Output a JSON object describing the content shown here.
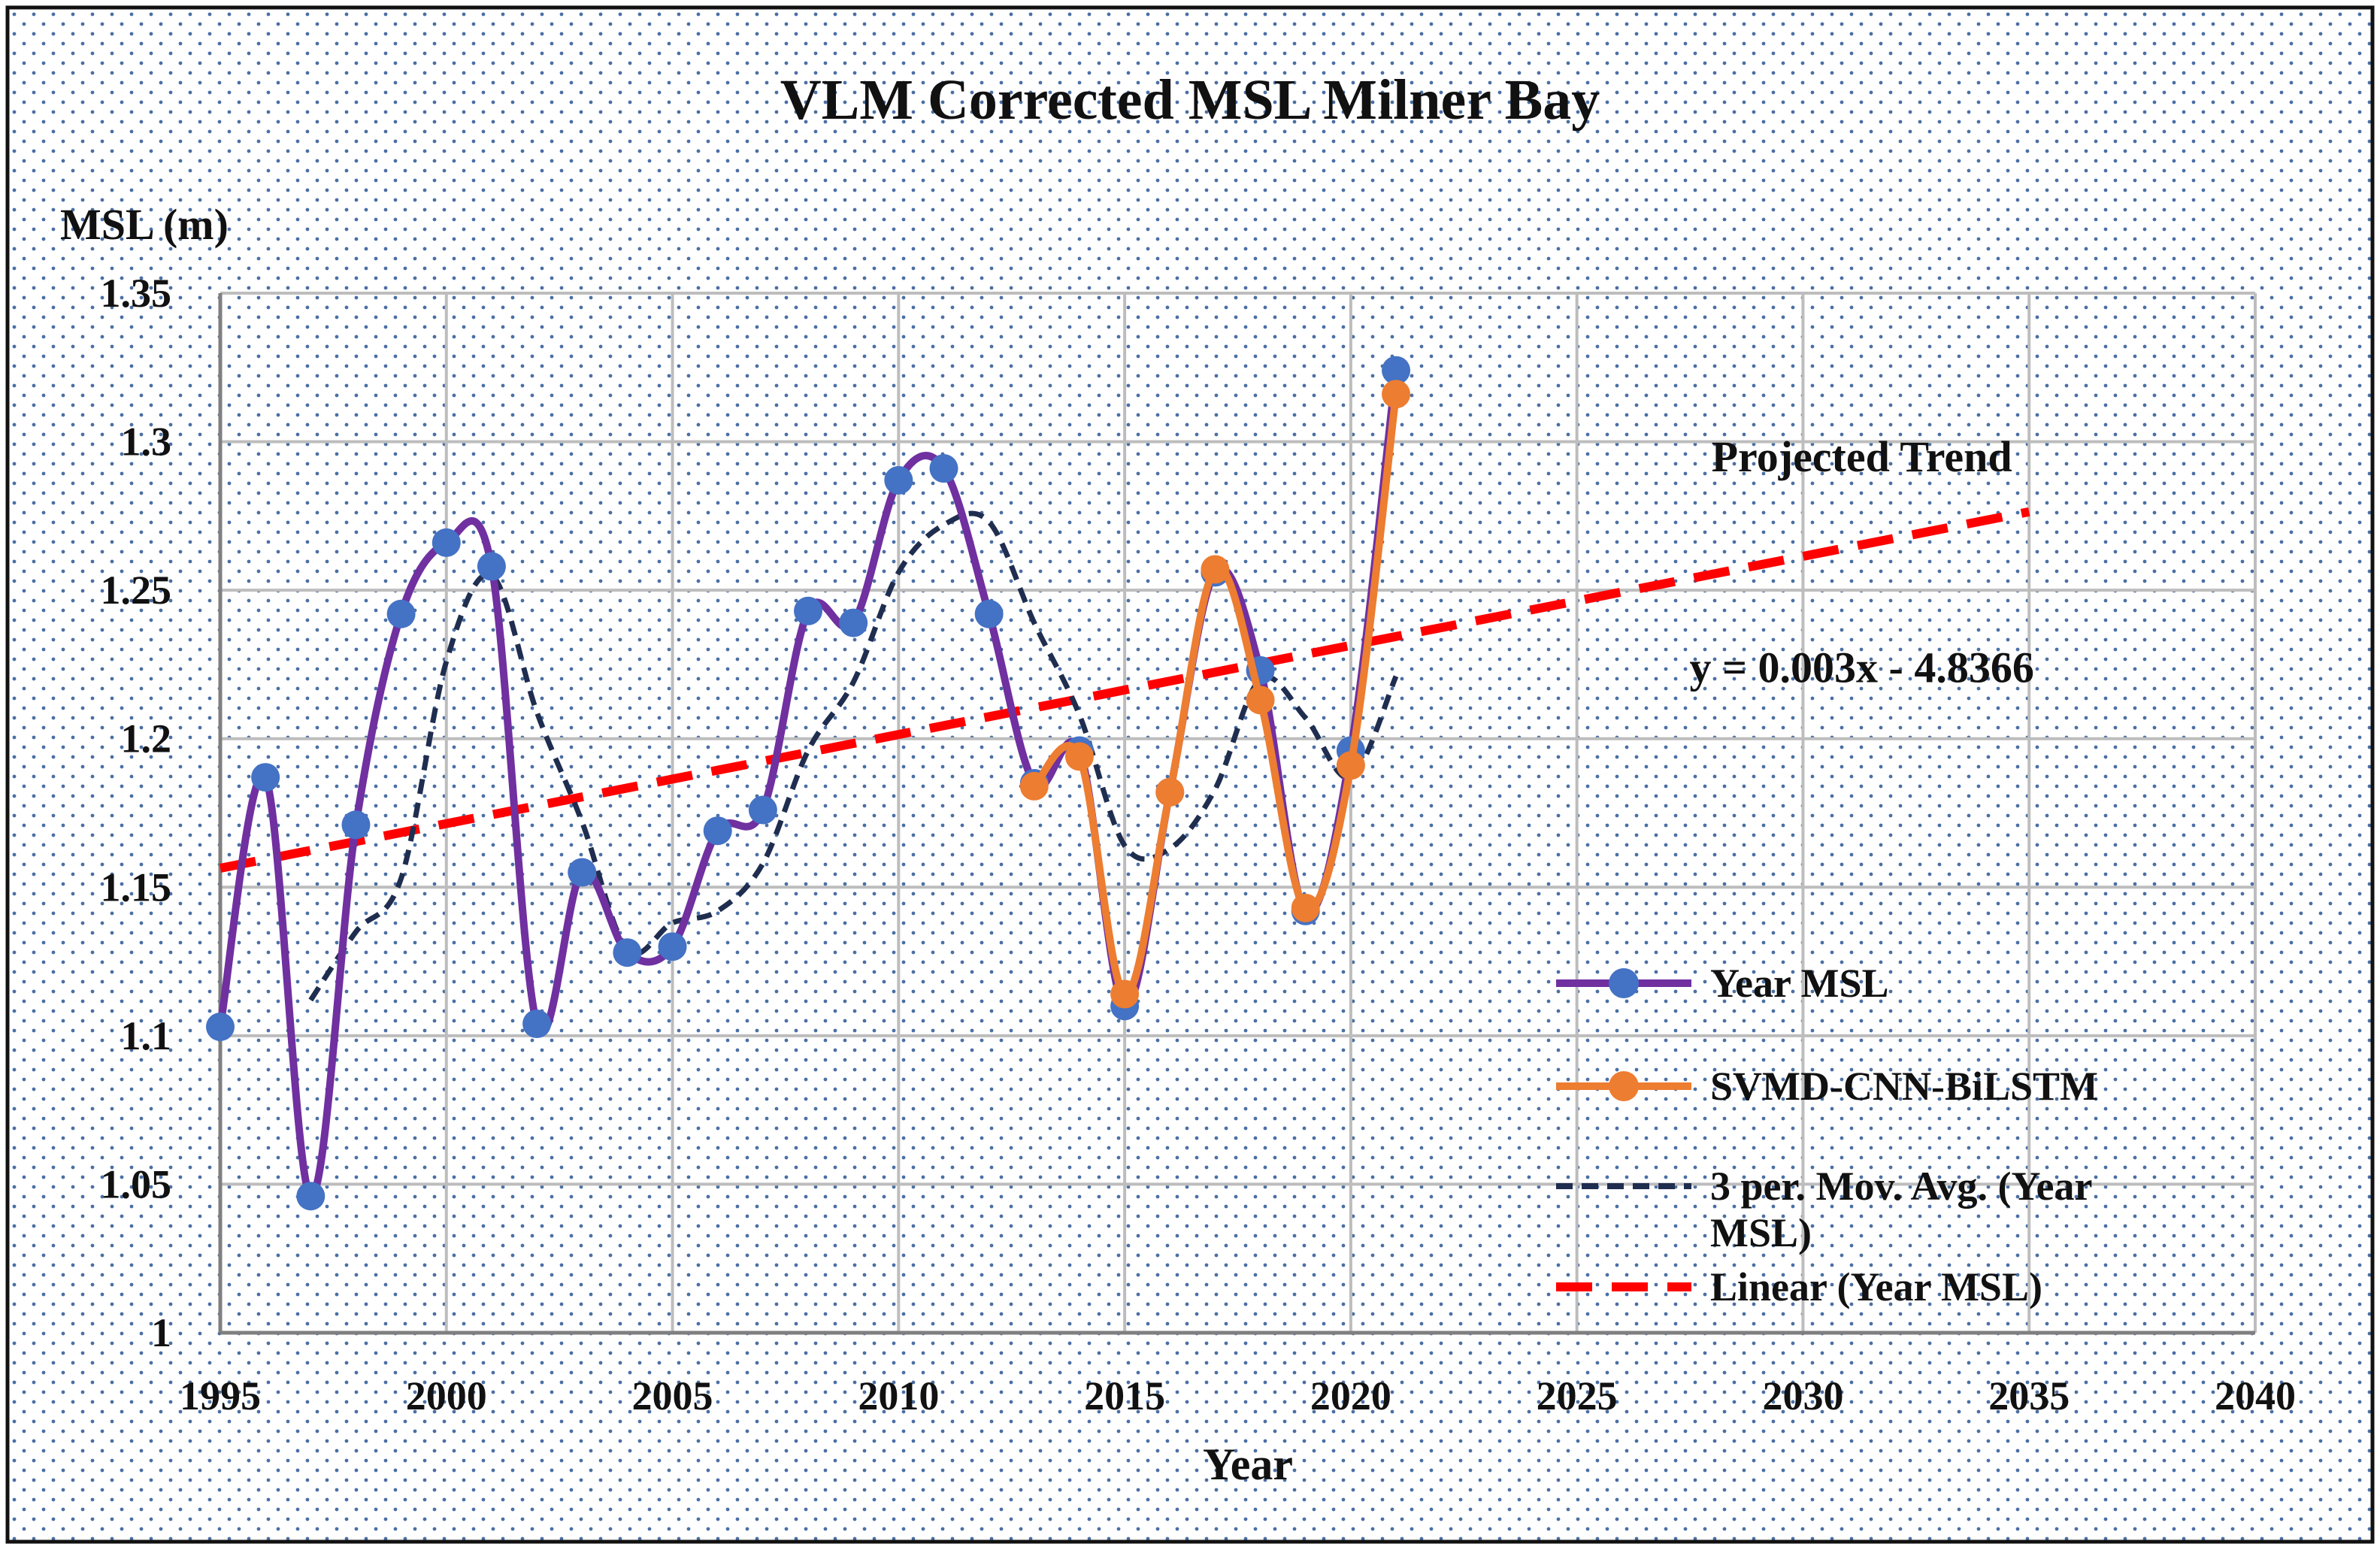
{
  "chart_data": {
    "type": "line",
    "title": "VLM Corrected MSL Milner Bay",
    "xlabel": "Year",
    "ylabel": "MSL (m)",
    "xlim": [
      1995,
      2040
    ],
    "ylim": [
      1.0,
      1.35
    ],
    "x_ticks": [
      1995,
      2000,
      2005,
      2010,
      2015,
      2020,
      2025,
      2030,
      2035,
      2040
    ],
    "y_ticks": [
      1.0,
      1.05,
      1.1,
      1.15,
      1.2,
      1.25,
      1.3,
      1.35
    ],
    "x_tick_labels": [
      "1995",
      "2000",
      "2005",
      "2010",
      "2015",
      "2020",
      "2025",
      "2030",
      "2035",
      "2040"
    ],
    "y_tick_labels": [
      "1",
      "1.05",
      "1.1",
      "1.15",
      "1.2",
      "1.25",
      "1.3",
      "1.35"
    ],
    "grid": true,
    "legend_position": "bottom-right",
    "series": [
      {
        "name": "Year MSL",
        "style": "smooth-line-markers",
        "color": "#7030A0",
        "marker_color": "#4472C4",
        "x": [
          1995,
          1996,
          1997,
          1998,
          1999,
          2000,
          2001,
          2002,
          2003,
          2004,
          2005,
          2006,
          2007,
          2008,
          2009,
          2010,
          2011,
          2012,
          2013,
          2014,
          2015,
          2016,
          2017,
          2018,
          2019,
          2020,
          2021
        ],
        "values": [
          1.103,
          1.187,
          1.046,
          1.171,
          1.242,
          1.266,
          1.258,
          1.104,
          1.155,
          1.128,
          1.13,
          1.169,
          1.176,
          1.243,
          1.239,
          1.287,
          1.291,
          1.242,
          1.185,
          1.196,
          1.11,
          1.182,
          1.256,
          1.223,
          1.142,
          1.196,
          1.324
        ]
      },
      {
        "name": "SVMD-CNN-BiLSTM",
        "style": "smooth-line-markers",
        "color": "#ED7D31",
        "marker_color": "#ED7D31",
        "x": [
          2013,
          2014,
          2015,
          2016,
          2017,
          2018,
          2019,
          2020,
          2021
        ],
        "values": [
          1.184,
          1.194,
          1.114,
          1.182,
          1.257,
          1.213,
          1.143,
          1.191,
          1.316
        ]
      },
      {
        "name": "3 per. Mov. Avg. (Year MSL)",
        "style": "dashed-smooth",
        "color": "#1F2D4F",
        "x": [
          1997,
          1998,
          1999,
          2000,
          2001,
          2002,
          2003,
          2004,
          2005,
          2006,
          2007,
          2008,
          2009,
          2010,
          2011,
          2012,
          2013,
          2014,
          2015,
          2016,
          2017,
          2018,
          2019,
          2020,
          2021
        ],
        "values": [
          1.112,
          1.135,
          1.153,
          1.226,
          1.255,
          1.209,
          1.172,
          1.129,
          1.138,
          1.142,
          1.158,
          1.196,
          1.219,
          1.256,
          1.272,
          1.273,
          1.239,
          1.208,
          1.164,
          1.163,
          1.183,
          1.22,
          1.207,
          1.187,
          1.221
        ]
      },
      {
        "name": "Linear (Year MSL)",
        "style": "dashed-line",
        "color": "#FF0000",
        "x": [
          1995,
          2035
        ],
        "values": [
          1.1564,
          1.2764
        ]
      }
    ],
    "annotations": [
      {
        "text": "Projected Trend",
        "x": 2031.3,
        "y": 1.29
      },
      {
        "text": "y = 0.003x - 4.8366",
        "x": 2031.3,
        "y": 1.219
      }
    ]
  }
}
